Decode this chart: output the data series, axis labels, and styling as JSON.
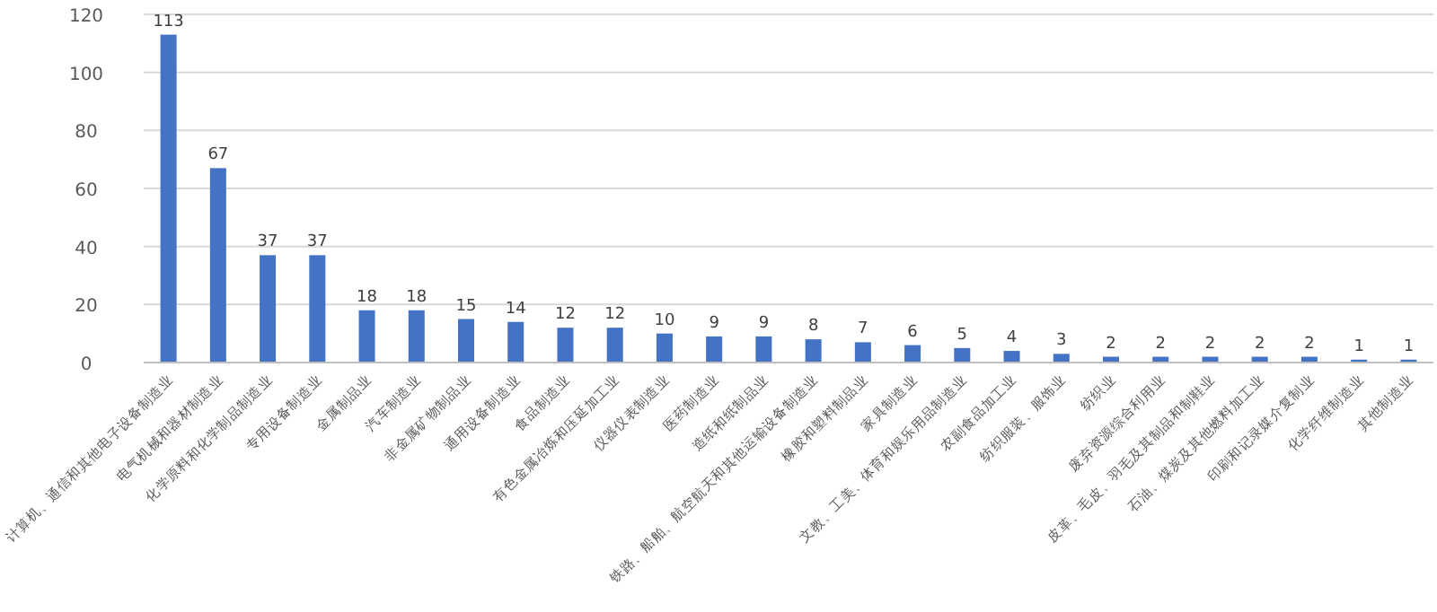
{
  "chart_data": {
    "type": "bar",
    "categories": [
      "计算机、通信和其他电子设备制造业",
      "电气机械和器材制造业",
      "化学原料和化学制品制造业",
      "专用设备制造业",
      "金属制品业",
      "汽车制造业",
      "非金属矿物制品业",
      "通用设备制造业",
      "食品制造业",
      "有色金属冶炼和压延加工业",
      "仪器仪表制造业",
      "医药制造业",
      "造纸和纸制品业",
      "铁路、船舶、航空航天和其他运输设备制造业",
      "橡胶和塑料制品业",
      "家具制造业",
      "文教、工美、体育和娱乐用品制造业",
      "农副食品加工业",
      "纺织服装、服饰业",
      "纺织业",
      "废弃资源综合利用业",
      "皮革、毛皮、羽毛及其制品和制鞋业",
      "石油、煤炭及其他燃料加工业",
      "印刷和记录媒介复制业",
      "化学纤维制造业",
      "其他制造业"
    ],
    "values": [
      113,
      67,
      37,
      37,
      18,
      18,
      15,
      14,
      12,
      12,
      10,
      9,
      9,
      8,
      7,
      6,
      5,
      4,
      3,
      2,
      2,
      2,
      2,
      2,
      1,
      1
    ],
    "color": "#4472c4",
    "ylim": [
      0,
      120
    ],
    "yticks": [
      0,
      20,
      40,
      60,
      80,
      100,
      120
    ],
    "grid": "y",
    "data_labels": true
  }
}
